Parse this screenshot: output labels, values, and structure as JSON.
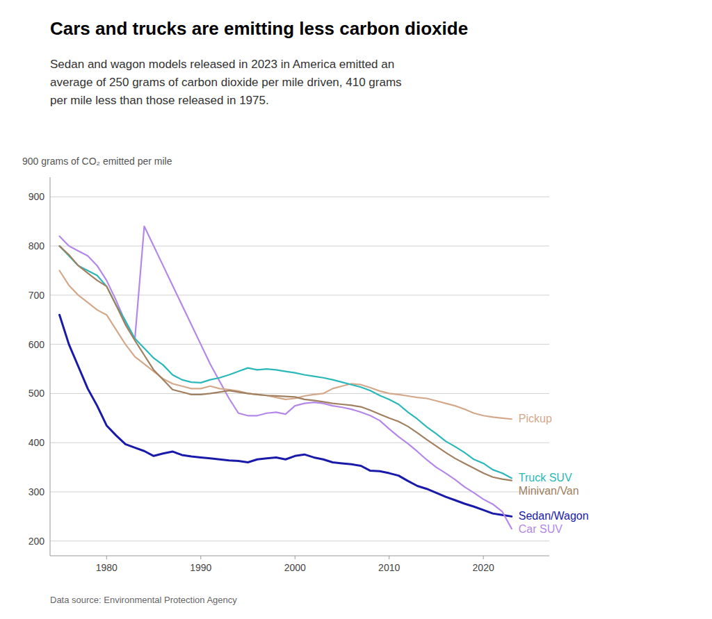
{
  "chart_data": {
    "type": "line",
    "title": "Cars and trucks are emitting less carbon dioxide",
    "subtitle": "Sedan and wagon models released in 2023 in America emitted an\naverage of 250 grams of carbon dioxide per mile driven, 410 grams\nper mile less than those released in 1975.",
    "ylabel": "900 grams of CO₂ emitted per mile",
    "source": "Data source: Environmental Protection Agency",
    "ylim": [
      170,
      940
    ],
    "yticks": [
      200,
      300,
      400,
      500,
      600,
      700,
      800,
      900
    ],
    "xlim": [
      1974,
      2027
    ],
    "xticks": [
      1980,
      1990,
      2000,
      2010,
      2020
    ],
    "grid": true,
    "x": [
      1975,
      1976,
      1977,
      1978,
      1979,
      1980,
      1981,
      1982,
      1983,
      1984,
      1985,
      1986,
      1987,
      1988,
      1989,
      1990,
      1991,
      1992,
      1993,
      1994,
      1995,
      1996,
      1997,
      1998,
      1999,
      2000,
      2001,
      2002,
      2003,
      2004,
      2005,
      2006,
      2007,
      2008,
      2009,
      2010,
      2011,
      2012,
      2013,
      2014,
      2015,
      2016,
      2017,
      2018,
      2019,
      2020,
      2021,
      2022,
      2023
    ],
    "series": [
      {
        "name": "Sedan/Wagon",
        "color": "#1a1aaa",
        "values": [
          660,
          600,
          555,
          510,
          475,
          435,
          415,
          397,
          390,
          383,
          373,
          378,
          382,
          375,
          372,
          370,
          368,
          366,
          364,
          363,
          360,
          366,
          368,
          370,
          366,
          373,
          376,
          370,
          366,
          360,
          358,
          356,
          353,
          343,
          342,
          338,
          333,
          322,
          312,
          306,
          298,
          290,
          283,
          276,
          270,
          263,
          256,
          253,
          250
        ]
      },
      {
        "name": "Car SUV",
        "color": "#b388e8",
        "values": [
          820,
          800,
          790,
          780,
          760,
          730,
          690,
          645,
          610,
          840,
          800,
          760,
          720,
          680,
          640,
          600,
          560,
          525,
          490,
          460,
          455,
          455,
          460,
          462,
          458,
          475,
          480,
          482,
          480,
          475,
          472,
          468,
          462,
          455,
          445,
          428,
          412,
          398,
          382,
          365,
          350,
          338,
          325,
          310,
          298,
          285,
          275,
          260,
          225
        ]
      },
      {
        "name": "Pickup",
        "color": "#d4a88a",
        "values": [
          750,
          720,
          700,
          685,
          670,
          660,
          630,
          600,
          575,
          560,
          545,
          530,
          520,
          515,
          510,
          510,
          515,
          510,
          508,
          505,
          500,
          498,
          496,
          492,
          488,
          490,
          495,
          498,
          500,
          510,
          515,
          520,
          518,
          512,
          505,
          500,
          498,
          495,
          492,
          490,
          485,
          480,
          475,
          468,
          460,
          455,
          452,
          450,
          448
        ]
      },
      {
        "name": "Truck SUV",
        "color": "#2ab8b8",
        "values": [
          800,
          780,
          760,
          750,
          740,
          718,
          680,
          648,
          612,
          592,
          572,
          558,
          538,
          528,
          523,
          522,
          528,
          532,
          538,
          545,
          552,
          548,
          550,
          548,
          545,
          542,
          538,
          535,
          532,
          528,
          523,
          518,
          513,
          506,
          496,
          488,
          478,
          462,
          448,
          432,
          418,
          403,
          392,
          380,
          366,
          358,
          345,
          338,
          328
        ]
      },
      {
        "name": "Minivan/Van",
        "color": "#a08060",
        "values": [
          800,
          782,
          760,
          745,
          730,
          718,
          680,
          640,
          608,
          578,
          548,
          528,
          508,
          503,
          498,
          498,
          500,
          503,
          506,
          503,
          500,
          498,
          496,
          495,
          494,
          493,
          488,
          486,
          483,
          480,
          478,
          476,
          473,
          466,
          458,
          450,
          443,
          433,
          420,
          406,
          393,
          380,
          368,
          358,
          348,
          338,
          330,
          326,
          323
        ]
      }
    ]
  }
}
